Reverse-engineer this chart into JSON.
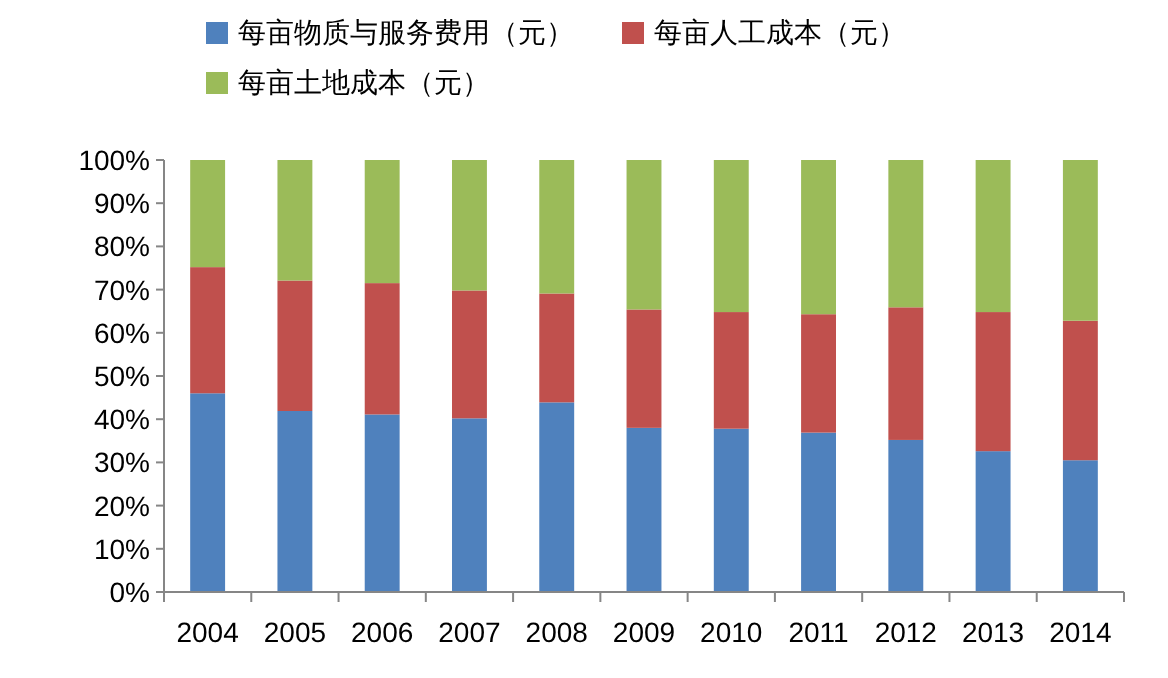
{
  "chart_data": {
    "type": "bar",
    "stacked": true,
    "categories": [
      "2004",
      "2005",
      "2006",
      "2007",
      "2008",
      "2009",
      "2010",
      "2011",
      "2012",
      "2013",
      "2014"
    ],
    "series": [
      {
        "name": "每亩物质与服务费用（元）",
        "color": "#4f81bd",
        "values": [
          46.0,
          41.9,
          41.1,
          40.2,
          43.9,
          38.0,
          37.8,
          36.9,
          35.2,
          32.6,
          30.5
        ]
      },
      {
        "name": "每亩人工成本（元）",
        "color": "#c0504d",
        "values": [
          29.2,
          30.2,
          30.4,
          29.6,
          25.2,
          27.4,
          27.0,
          27.4,
          30.7,
          32.2,
          32.3
        ]
      },
      {
        "name": "每亩土地成本（元）",
        "color": "#9bbb59",
        "values": [
          24.8,
          27.9,
          28.5,
          30.2,
          30.9,
          34.6,
          35.2,
          35.7,
          34.1,
          35.2,
          37.2
        ]
      }
    ],
    "ylim": [
      0,
      100
    ],
    "yticks": [
      {
        "value": 0,
        "label": "0%"
      },
      {
        "value": 10,
        "label": "10%"
      },
      {
        "value": 20,
        "label": "20%"
      },
      {
        "value": 30,
        "label": "30%"
      },
      {
        "value": 40,
        "label": "40%"
      },
      {
        "value": 50,
        "label": "50%"
      },
      {
        "value": 60,
        "label": "60%"
      },
      {
        "value": 70,
        "label": "70%"
      },
      {
        "value": 80,
        "label": "80%"
      },
      {
        "value": 90,
        "label": "90%"
      },
      {
        "value": 100,
        "label": "100%"
      }
    ],
    "legend": "top",
    "grid": false
  }
}
